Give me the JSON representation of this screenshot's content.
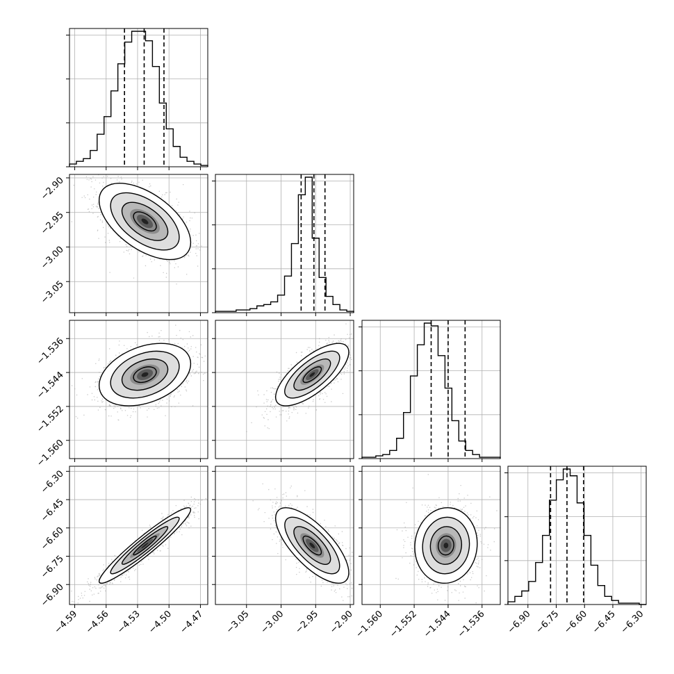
{
  "chart_data": {
    "type": "corner",
    "num_params": 4,
    "grid": true,
    "params": [
      {
        "range": [
          -4.595,
          -4.463
        ],
        "ticks": [
          -4.59,
          -4.56,
          -4.53,
          -4.5,
          -4.47
        ],
        "tick_labels": [
          "−4.59",
          "−4.56",
          "−4.53",
          "−4.50",
          "−4.47"
        ],
        "hist": [
          0.02,
          0.04,
          0.06,
          0.12,
          0.24,
          0.37,
          0.56,
          0.76,
          0.92,
          1.0,
          1.0,
          0.93,
          0.74,
          0.47,
          0.28,
          0.15,
          0.07,
          0.04,
          0.02,
          0.01
        ],
        "quantiles": [
          -4.5425,
          -4.5237,
          -4.5048
        ]
      },
      {
        "range": [
          -3.095,
          -2.895
        ],
        "ticks": [
          -3.05,
          -3.0,
          -2.95,
          -2.9
        ],
        "tick_labels": [
          "−3.05",
          "−3.00",
          "−2.95",
          "−2.90"
        ],
        "hist": [
          0.01,
          0.01,
          0.01,
          0.02,
          0.02,
          0.03,
          0.05,
          0.06,
          0.08,
          0.13,
          0.27,
          0.51,
          0.87,
          1.0,
          0.55,
          0.26,
          0.12,
          0.06,
          0.02,
          0.01
        ],
        "quantiles": [
          -2.971,
          -2.9525,
          -2.9365
        ]
      },
      {
        "range": [
          -1.5643,
          -1.5317
        ],
        "ticks": [
          -1.56,
          -1.552,
          -1.544,
          -1.536
        ],
        "tick_labels": [
          "−1.560",
          "−1.552",
          "−1.544",
          "−1.536"
        ],
        "hist": [
          0.01,
          0.01,
          0.02,
          0.03,
          0.06,
          0.15,
          0.34,
          0.61,
          0.84,
          1.0,
          0.98,
          0.76,
          0.52,
          0.28,
          0.13,
          0.06,
          0.03,
          0.01,
          0.01,
          0.01
        ],
        "quantiles": [
          -1.548,
          -1.544,
          -1.54
        ]
      },
      {
        "range": [
          -7.006,
          -6.273
        ],
        "ticks": [
          -6.9,
          -6.75,
          -6.6,
          -6.45,
          -6.3
        ],
        "tick_labels": [
          "−6.90",
          "−6.75",
          "−6.60",
          "−6.45",
          "−6.30"
        ],
        "hist": [
          0.02,
          0.06,
          0.1,
          0.17,
          0.31,
          0.51,
          0.77,
          0.92,
          1.0,
          0.95,
          0.75,
          0.51,
          0.29,
          0.14,
          0.06,
          0.03,
          0.01,
          0.01,
          0.01,
          0.0
        ],
        "quantiles": [
          -6.78,
          -6.693,
          -6.605
        ]
      }
    ],
    "pairs": [
      {
        "x": 0,
        "y": 1,
        "mean": [
          -4.523,
          -2.963
        ],
        "sd": [
          0.019,
          0.024
        ],
        "corr": -0.55
      },
      {
        "x": 0,
        "y": 2,
        "mean": [
          -4.523,
          -1.5445
        ],
        "sd": [
          0.019,
          0.0032
        ],
        "corr": 0.35
      },
      {
        "x": 1,
        "y": 2,
        "mean": [
          -2.955,
          -1.5445
        ],
        "sd": [
          0.023,
          0.0032
        ],
        "corr": 0.72
      },
      {
        "x": 0,
        "y": 3,
        "mean": [
          -4.523,
          -6.693
        ],
        "sd": [
          0.019,
          0.087
        ],
        "corr": 0.95
      },
      {
        "x": 1,
        "y": 3,
        "mean": [
          -2.955,
          -6.693
        ],
        "sd": [
          0.023,
          0.087
        ],
        "corr": -0.72
      },
      {
        "x": 2,
        "y": 3,
        "mean": [
          -1.5445,
          -6.693
        ],
        "sd": [
          0.0032,
          0.087
        ],
        "corr": 0.05
      }
    ],
    "contour_levels_sigma": [
      0.5,
      1.0,
      1.5,
      2.0
    ],
    "colors": {
      "line": "#000000",
      "grid": "#b0b0b0",
      "points": "#9a9a9a",
      "density_dark": "#000000"
    }
  }
}
